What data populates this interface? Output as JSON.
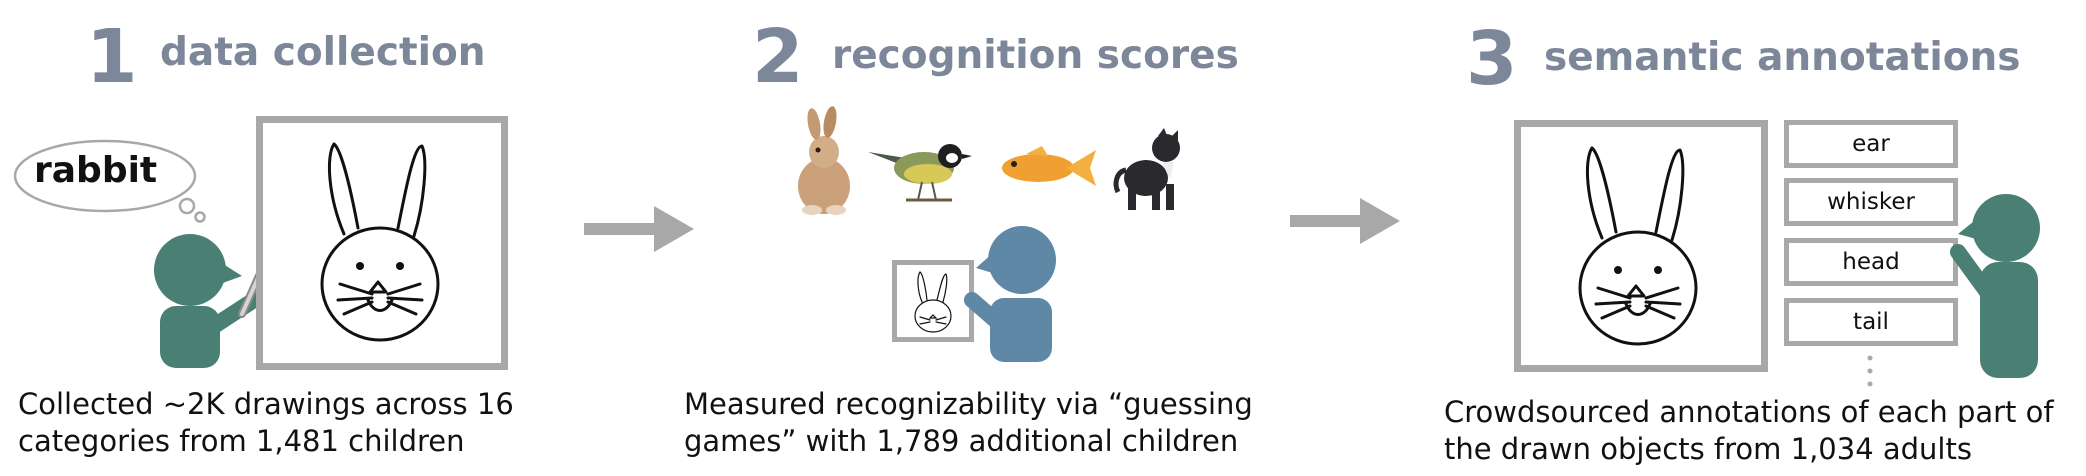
{
  "stages": [
    {
      "number": "1",
      "title": "data collection",
      "speech_word": "rabbit",
      "caption_line1": "Collected ~2K drawings across 16",
      "caption_line2": "categories from 1,481 children"
    },
    {
      "number": "2",
      "title": "recognition scores",
      "caption_line1": "Measured recognizability via “guessing",
      "caption_line2": "games” with 1,789 additional children"
    },
    {
      "number": "3",
      "title": "semantic annotations",
      "part_labels": [
        "ear",
        "whisker",
        "head",
        "tail"
      ],
      "caption_line1": "Crowdsourced annotations of each part of",
      "caption_line2": "the drawn objects from 1,034 adults"
    }
  ],
  "colors": {
    "heading": "#7c8799",
    "frame": "#a8a8a8",
    "child_green": "#4a7f74",
    "child_blue": "#5f87a6",
    "arrow": "#a8a8a8"
  },
  "icons": [
    "speech-bubble-icon",
    "child-drawer-icon",
    "child-guesser-icon",
    "adult-annotator-icon",
    "rabbit-photo-icon",
    "bird-photo-icon",
    "fish-photo-icon",
    "dog-photo-icon",
    "arrow-right-icon"
  ]
}
